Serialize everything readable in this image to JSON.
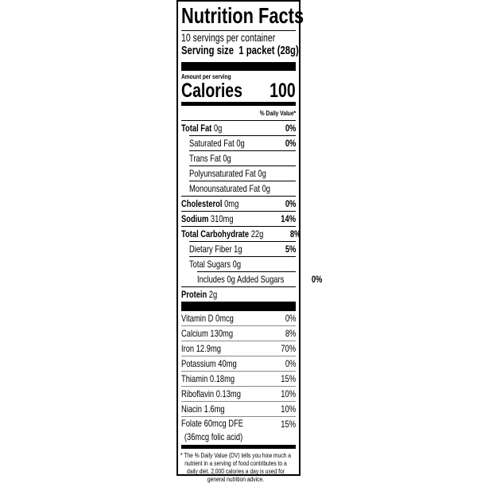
{
  "title": "Nutrition Facts",
  "servings_per_container": "10 servings per container",
  "serving_size_label": "Serving size",
  "serving_size_value": "1 packet (28g)",
  "amount_per_serving": "Amount per serving",
  "calories_label": "Calories",
  "calories_value": "100",
  "daily_value_header": "% Daily Value*",
  "nutrients": [
    {
      "name": "Total Fat",
      "amount": "0g",
      "dv": "0%",
      "bold": true,
      "indent": 0
    },
    {
      "name": "Saturated Fat",
      "amount": "0g",
      "dv": "0%",
      "bold": false,
      "indent": 1
    },
    {
      "name": "Trans Fat",
      "amount": "0g",
      "dv": "",
      "bold": false,
      "indent": 1
    },
    {
      "name": "Polyunsaturated Fat",
      "amount": "0g",
      "dv": "",
      "bold": false,
      "indent": 1
    },
    {
      "name": "Monounsaturated Fat",
      "amount": "0g",
      "dv": "",
      "bold": false,
      "indent": 1
    },
    {
      "name": "Cholesterol",
      "amount": "0mg",
      "dv": "0%",
      "bold": true,
      "indent": 0
    },
    {
      "name": "Sodium",
      "amount": "310mg",
      "dv": "14%",
      "bold": true,
      "indent": 0
    },
    {
      "name": "Total Carbohydrate",
      "amount": "22g",
      "dv": "8%",
      "bold": true,
      "indent": 0
    },
    {
      "name": "Dietary Fiber",
      "amount": "1g",
      "dv": "5%",
      "bold": false,
      "indent": 1
    },
    {
      "name": "Total Sugars",
      "amount": "0g",
      "dv": "",
      "bold": false,
      "indent": 1
    },
    {
      "name": "Includes 0g Added Sugars",
      "amount": "",
      "dv": "0%",
      "bold": false,
      "indent": 2
    },
    {
      "name": "Protein",
      "amount": "2g",
      "dv": "",
      "bold": true,
      "indent": 0
    }
  ],
  "vitamins": [
    {
      "name": "Vitamin D 0mcg",
      "dv": "0%"
    },
    {
      "name": "Calcium 130mg",
      "dv": "8%"
    },
    {
      "name": "Iron 12.9mg",
      "dv": "70%"
    },
    {
      "name": "Potassium 40mg",
      "dv": "0%"
    },
    {
      "name": "Thiamin 0.18mg",
      "dv": "15%"
    },
    {
      "name": "Riboflavin 0.13mg",
      "dv": "10%"
    },
    {
      "name": "Niacin 1.6mg",
      "dv": "10%"
    },
    {
      "name": "Folate 60mcg DFE",
      "dv": "15%",
      "sub": "(36mcg folic acid)"
    }
  ],
  "footnote": "* The % Daily Value (DV) tells you how much a nutrient in a serving of food contributes to a daily diet. 2,000 calories a day is used for general nutrition advice."
}
